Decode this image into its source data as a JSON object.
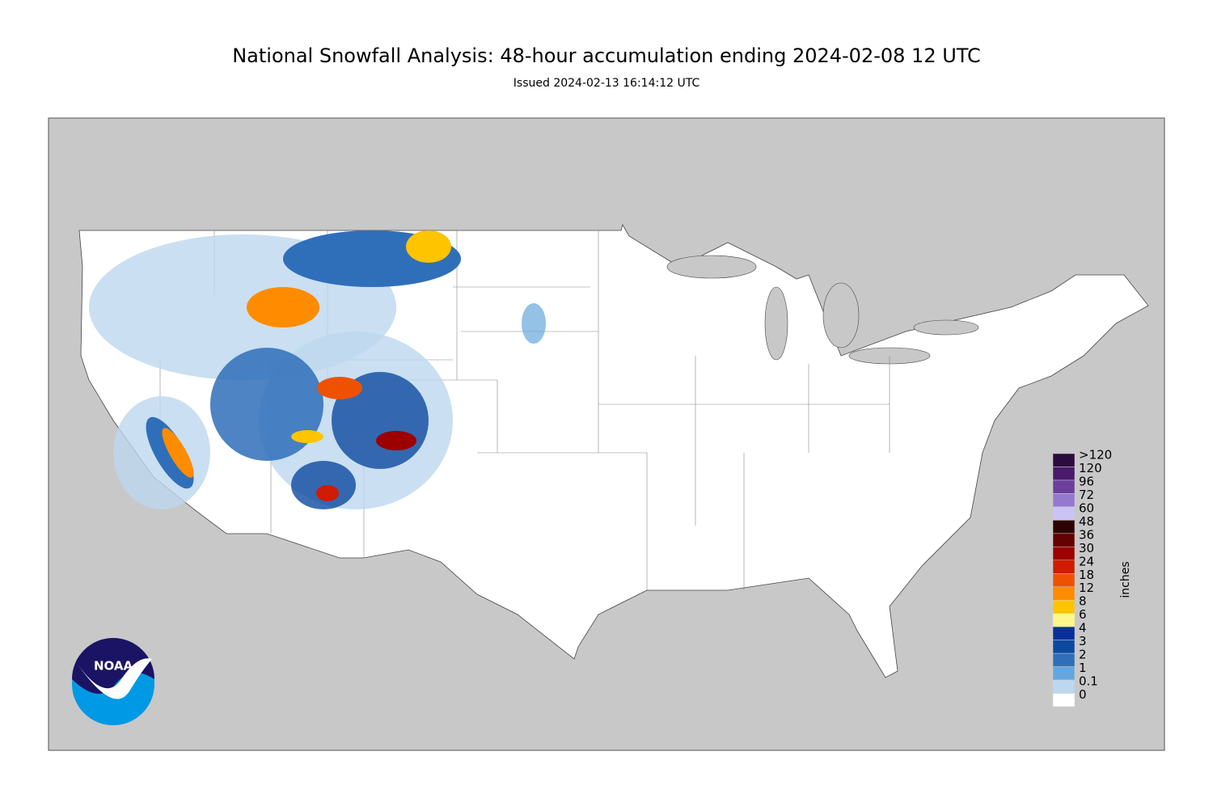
{
  "header": {
    "title": "National Snowfall Analysis: 48-hour accumulation ending 2024-02-08 12 UTC",
    "subtitle": "Issued 2024-02-13 16:14:12 UTC"
  },
  "legend": {
    "unit": "inches",
    "labels": [
      ">120",
      "120",
      "96",
      "72",
      "60",
      "48",
      "36",
      "30",
      "24",
      "18",
      "12",
      "8",
      "6",
      "4",
      "3",
      "2",
      "1",
      "0.1",
      "0"
    ],
    "colors": [
      "#2c0b3e",
      "#4a1a6b",
      "#6d3f9c",
      "#9479cf",
      "#c9c4f4",
      "#2e0202",
      "#650000",
      "#9c0000",
      "#cf1b00",
      "#ee5200",
      "#ff8c00",
      "#ffc400",
      "#fff78a",
      "#08309a",
      "#0c4aa0",
      "#2f6fba",
      "#66a6dc",
      "#bdd7ee",
      "#ffffff"
    ]
  },
  "logo": {
    "text": "NOAA"
  }
}
